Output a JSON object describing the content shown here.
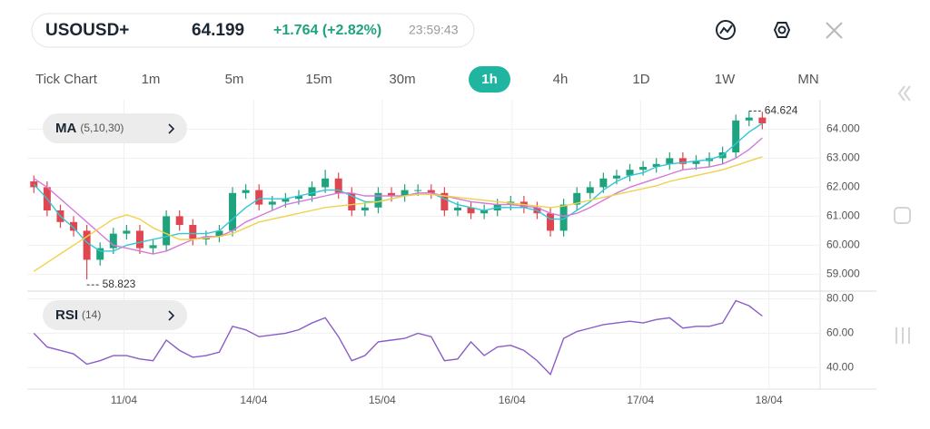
{
  "header": {
    "symbol": "USOUSD+",
    "price": "64.199",
    "change": "+1.764 (+2.82%)",
    "time": "23:59:43"
  },
  "timeframes": [
    "Tick Chart",
    "1m",
    "5m",
    "15m",
    "30m",
    "1h",
    "4h",
    "1D",
    "1W",
    "MN"
  ],
  "active_timeframe": 5,
  "chart_data": [
    {
      "type": "candlestick",
      "indicator": {
        "name": "MA",
        "params": "(5,10,30)"
      },
      "open": [
        62.2,
        62.0,
        61.2,
        60.8,
        60.5,
        59.5,
        59.9,
        60.4,
        60.5,
        59.9,
        60.0,
        61.0,
        60.7,
        60.2,
        60.3,
        60.5,
        61.8,
        61.9,
        61.4,
        61.5,
        61.6,
        61.7,
        62.0,
        62.3,
        61.8,
        61.2,
        61.3,
        61.8,
        61.7,
        61.9,
        61.9,
        61.8,
        61.2,
        61.3,
        61.1,
        61.2,
        61.4,
        61.5,
        61.3,
        61.1,
        60.5,
        61.4,
        61.8,
        62.0,
        62.3,
        62.4,
        62.6,
        62.7,
        62.8,
        63.0,
        62.8,
        62.9,
        63.0,
        63.2,
        64.3,
        64.4
      ],
      "high": [
        62.4,
        62.2,
        61.4,
        61.0,
        60.7,
        60.1,
        60.6,
        60.7,
        60.7,
        60.2,
        61.2,
        61.2,
        60.9,
        60.5,
        60.7,
        62.0,
        62.1,
        62.1,
        61.7,
        61.8,
        61.9,
        62.2,
        62.6,
        62.5,
        62.0,
        61.5,
        62.0,
        62.0,
        62.1,
        62.1,
        62.1,
        62.0,
        61.5,
        61.5,
        61.4,
        61.6,
        61.7,
        61.7,
        61.5,
        61.3,
        61.6,
        62.0,
        62.2,
        62.5,
        62.6,
        62.8,
        62.9,
        63.0,
        63.2,
        63.2,
        63.1,
        63.2,
        63.4,
        64.5,
        64.624,
        64.6
      ],
      "low": [
        61.8,
        61.0,
        60.6,
        60.3,
        58.823,
        59.3,
        59.7,
        60.2,
        59.7,
        59.7,
        59.8,
        60.5,
        60.0,
        60.0,
        60.1,
        60.3,
        61.6,
        61.2,
        61.2,
        61.3,
        61.4,
        61.5,
        61.8,
        61.6,
        61.0,
        61.0,
        61.1,
        61.5,
        61.5,
        61.7,
        61.6,
        61.0,
        61.0,
        60.9,
        60.9,
        61.0,
        61.2,
        61.1,
        60.9,
        60.3,
        60.3,
        61.2,
        61.6,
        61.8,
        62.1,
        62.2,
        62.4,
        62.5,
        62.6,
        62.6,
        62.6,
        62.7,
        62.8,
        63.0,
        64.1,
        64.0
      ],
      "close": [
        62.0,
        61.2,
        60.8,
        60.5,
        59.5,
        59.9,
        60.4,
        60.5,
        59.9,
        60.0,
        61.0,
        60.7,
        60.2,
        60.3,
        60.5,
        61.8,
        61.9,
        61.4,
        61.5,
        61.6,
        61.7,
        62.0,
        62.3,
        61.8,
        61.2,
        61.3,
        61.8,
        61.7,
        61.9,
        61.9,
        61.8,
        61.2,
        61.3,
        61.1,
        61.2,
        61.4,
        61.5,
        61.3,
        61.1,
        60.5,
        61.4,
        61.8,
        62.0,
        62.3,
        62.4,
        62.6,
        62.7,
        62.8,
        63.0,
        62.8,
        62.9,
        63.0,
        63.2,
        64.3,
        64.4,
        64.2
      ],
      "up_color": "#1fa37e",
      "down_color": "#e0464f",
      "series": [
        {
          "color": "#33c6d6",
          "values": [
            62.1,
            61.6,
            61.0,
            60.6,
            60.1,
            59.8,
            59.8,
            60.0,
            60.1,
            60.2,
            60.3,
            60.4,
            60.4,
            60.4,
            60.5,
            60.9,
            61.3,
            61.6,
            61.6,
            61.6,
            61.7,
            61.8,
            61.9,
            61.9,
            61.7,
            61.5,
            61.5,
            61.6,
            61.7,
            61.8,
            61.8,
            61.6,
            61.4,
            61.3,
            61.2,
            61.3,
            61.3,
            61.3,
            61.2,
            60.9,
            60.9,
            61.2,
            61.5,
            61.9,
            62.2,
            62.4,
            62.5,
            62.7,
            62.8,
            62.85,
            62.9,
            62.95,
            63.1,
            63.5,
            63.9,
            64.2
          ]
        },
        {
          "color": "#d57ad8",
          "values": [
            62.3,
            62.0,
            61.6,
            61.2,
            60.8,
            60.4,
            60.0,
            59.9,
            59.8,
            59.7,
            59.8,
            60.0,
            60.2,
            60.3,
            60.3,
            60.5,
            60.8,
            61.0,
            61.2,
            61.4,
            61.5,
            61.6,
            61.7,
            61.8,
            61.8,
            61.7,
            61.7,
            61.7,
            61.7,
            61.8,
            61.8,
            61.7,
            61.6,
            61.5,
            61.45,
            61.4,
            61.4,
            61.35,
            61.3,
            61.1,
            61.0,
            61.1,
            61.3,
            61.55,
            61.8,
            62.0,
            62.15,
            62.3,
            62.45,
            62.6,
            62.65,
            62.7,
            62.8,
            63.0,
            63.3,
            63.7
          ]
        },
        {
          "color": "#f0d24a",
          "values": [
            59.1,
            59.4,
            59.7,
            60.0,
            60.3,
            60.6,
            60.9,
            61.05,
            60.9,
            60.6,
            60.4,
            60.2,
            60.2,
            60.25,
            60.3,
            60.4,
            60.6,
            60.8,
            60.9,
            61.0,
            61.1,
            61.2,
            61.3,
            61.35,
            61.4,
            61.45,
            61.5,
            61.6,
            61.7,
            61.75,
            61.75,
            61.7,
            61.65,
            61.6,
            61.55,
            61.5,
            61.45,
            61.4,
            61.35,
            61.3,
            61.35,
            61.45,
            61.55,
            61.65,
            61.75,
            61.85,
            61.95,
            62.05,
            62.2,
            62.3,
            62.4,
            62.5,
            62.6,
            62.75,
            62.9,
            63.05
          ]
        }
      ],
      "xlim": [
        0,
        60
      ],
      "xticks": [
        {
          "value": 7.3,
          "label": "11/04"
        },
        {
          "value": 17.1,
          "label": "14/04"
        },
        {
          "value": 26.8,
          "label": "15/04"
        },
        {
          "value": 36.6,
          "label": "16/04"
        },
        {
          "value": 46.3,
          "label": "17/04"
        },
        {
          "value": 56.0,
          "label": "18/04"
        }
      ],
      "ylim": [
        58.45,
        64.7
      ],
      "yticks": [
        {
          "value": 59,
          "label": "59.000"
        },
        {
          "value": 60,
          "label": "60.000"
        },
        {
          "value": 61,
          "label": "61.000"
        },
        {
          "value": 62,
          "label": "62.000"
        },
        {
          "value": 63,
          "label": "63.000"
        },
        {
          "value": 64,
          "label": "64.000"
        }
      ],
      "grid": true
    },
    {
      "type": "line",
      "indicator": {
        "name": "RSI",
        "params": "(14)"
      },
      "series": [
        {
          "color": "#8a5cc7",
          "values": [
            60,
            52,
            50,
            48,
            42,
            44,
            47,
            47,
            45,
            44,
            56,
            50,
            46,
            47,
            49,
            64,
            62,
            58,
            59,
            60,
            62,
            66,
            69,
            58,
            44,
            47,
            55,
            56,
            57,
            60,
            58,
            44,
            45,
            55,
            47,
            52,
            53,
            50,
            44,
            36,
            57,
            61,
            63,
            65,
            66,
            67,
            66,
            68,
            69,
            63,
            64,
            64,
            66,
            79,
            76,
            70
          ]
        }
      ],
      "xlim": [
        0,
        60
      ],
      "ylim": [
        28,
        84
      ],
      "yticks": [
        {
          "value": 40,
          "label": "40.00"
        },
        {
          "value": 60,
          "label": "60.00"
        },
        {
          "value": 80,
          "label": "80.00"
        }
      ],
      "grid": true
    }
  ]
}
